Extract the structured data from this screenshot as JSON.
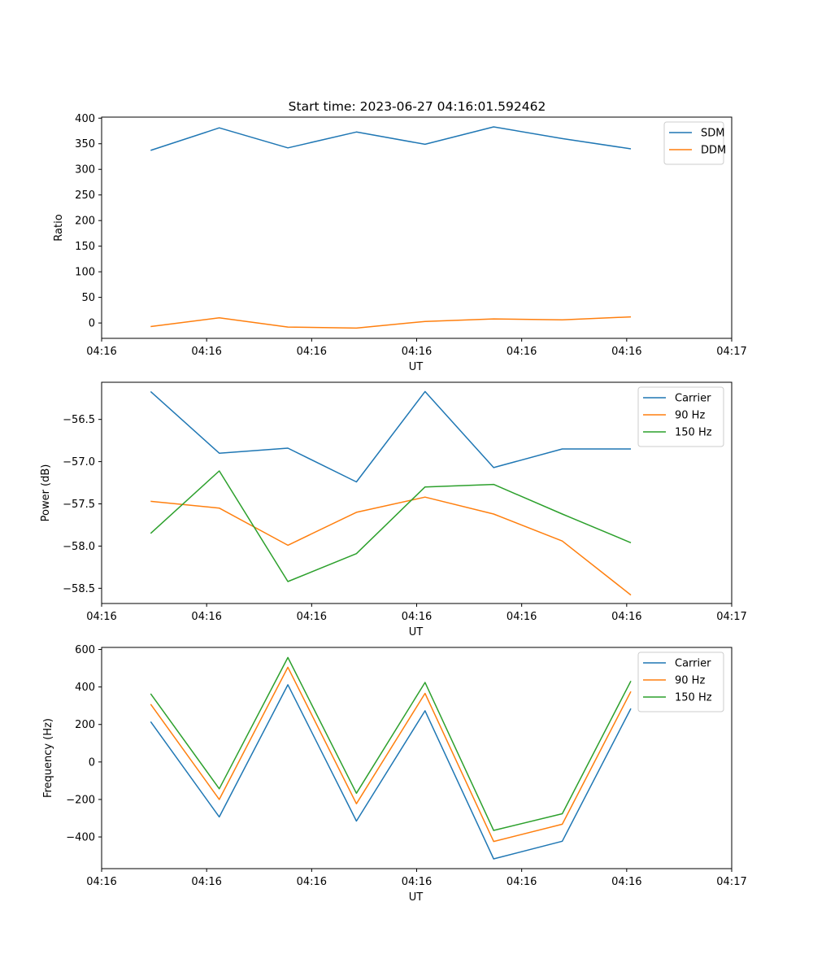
{
  "title": "Start time: 2023-06-27 04:16:01.592462",
  "colors": {
    "series1": "#1f77b4",
    "series2": "#ff7f0e",
    "series3": "#2ca02c"
  },
  "chart_data": [
    {
      "type": "line",
      "xlabel": "UT",
      "ylabel": "Ratio",
      "xlim": [
        0,
        9
      ],
      "ylim": [
        -30,
        402
      ],
      "x": [
        0.7,
        1.68,
        2.66,
        3.64,
        4.62,
        5.6,
        6.58,
        7.56
      ],
      "x_ticks": [
        {
          "x": 0,
          "label": "04:16"
        },
        {
          "x": 1.5,
          "label": "04:16"
        },
        {
          "x": 3,
          "label": "04:16"
        },
        {
          "x": 4.5,
          "label": "04:16"
        },
        {
          "x": 6,
          "label": "04:16"
        },
        {
          "x": 7.5,
          "label": "04:16"
        },
        {
          "x": 9,
          "label": "04:17"
        }
      ],
      "y_ticks": [
        {
          "y": 400,
          "label": "400"
        },
        {
          "y": 350,
          "label": "350"
        },
        {
          "y": 300,
          "label": "300"
        },
        {
          "y": 250,
          "label": "250"
        },
        {
          "y": 200,
          "label": "200"
        },
        {
          "y": 150,
          "label": "150"
        },
        {
          "y": 100,
          "label": "100"
        },
        {
          "y": 50,
          "label": "50"
        },
        {
          "y": 0,
          "label": "0"
        }
      ],
      "legend_position": "top-right",
      "grid": false,
      "series": [
        {
          "name": "SDM",
          "color": "#1f77b4",
          "values": [
            337,
            381,
            342,
            373,
            349,
            383,
            360,
            340
          ]
        },
        {
          "name": "DDM",
          "color": "#ff7f0e",
          "values": [
            -7,
            10,
            -8,
            -10,
            3,
            8,
            6,
            12
          ]
        }
      ]
    },
    {
      "type": "line",
      "xlabel": "UT",
      "ylabel": "Power (dB)",
      "xlim": [
        0,
        9
      ],
      "ylim": [
        -58.68,
        -56.06
      ],
      "x": [
        0.7,
        1.68,
        2.66,
        3.64,
        4.62,
        5.6,
        6.58,
        7.56
      ],
      "x_ticks": [
        {
          "x": 0,
          "label": "04:16"
        },
        {
          "x": 1.5,
          "label": "04:16"
        },
        {
          "x": 3,
          "label": "04:16"
        },
        {
          "x": 4.5,
          "label": "04:16"
        },
        {
          "x": 6,
          "label": "04:16"
        },
        {
          "x": 7.5,
          "label": "04:16"
        },
        {
          "x": 9,
          "label": "04:17"
        }
      ],
      "y_ticks": [
        {
          "y": -56.5,
          "label": "−56.5"
        },
        {
          "y": -57.0,
          "label": "−57.0"
        },
        {
          "y": -57.5,
          "label": "−57.5"
        },
        {
          "y": -58.0,
          "label": "−58.0"
        },
        {
          "y": -58.5,
          "label": "−58.5"
        }
      ],
      "legend_position": "top-right",
      "grid": false,
      "series": [
        {
          "name": "Carrier",
          "color": "#1f77b4",
          "values": [
            -56.17,
            -56.9,
            -56.84,
            -57.24,
            -56.17,
            -57.07,
            -56.85,
            -56.85
          ]
        },
        {
          "name": "90 Hz",
          "color": "#ff7f0e",
          "values": [
            -57.47,
            -57.55,
            -57.99,
            -57.6,
            -57.42,
            -57.62,
            -57.94,
            -58.58
          ]
        },
        {
          "name": "150 Hz",
          "color": "#2ca02c",
          "values": [
            -57.85,
            -57.11,
            -58.42,
            -58.09,
            -57.3,
            -57.27,
            -57.62,
            -57.96
          ]
        }
      ]
    },
    {
      "type": "line",
      "xlabel": "UT",
      "ylabel": "Frequency (Hz)",
      "xlim": [
        0,
        9
      ],
      "ylim": [
        -569,
        611
      ],
      "x": [
        0.7,
        1.68,
        2.66,
        3.64,
        4.62,
        5.6,
        6.58,
        7.56
      ],
      "x_ticks": [
        {
          "x": 0,
          "label": "04:16"
        },
        {
          "x": 1.5,
          "label": "04:16"
        },
        {
          "x": 3,
          "label": "04:16"
        },
        {
          "x": 4.5,
          "label": "04:16"
        },
        {
          "x": 6,
          "label": "04:16"
        },
        {
          "x": 7.5,
          "label": "04:16"
        },
        {
          "x": 9,
          "label": "04:17"
        }
      ],
      "y_ticks": [
        {
          "y": 600,
          "label": "600"
        },
        {
          "y": 400,
          "label": "400"
        },
        {
          "y": 200,
          "label": "200"
        },
        {
          "y": 0,
          "label": "0"
        },
        {
          "y": -200,
          "label": "−200"
        },
        {
          "y": -400,
          "label": "−400"
        }
      ],
      "legend_position": "top-right",
      "grid": false,
      "series": [
        {
          "name": "Carrier",
          "color": "#1f77b4",
          "values": [
            215,
            -293,
            412,
            -315,
            273,
            -517,
            -423,
            285
          ]
        },
        {
          "name": "90 Hz",
          "color": "#ff7f0e",
          "values": [
            308,
            -200,
            505,
            -223,
            366,
            -424,
            -332,
            376
          ]
        },
        {
          "name": "150 Hz",
          "color": "#2ca02c",
          "values": [
            364,
            -143,
            557,
            -167,
            424,
            -365,
            -276,
            432
          ]
        }
      ]
    }
  ]
}
